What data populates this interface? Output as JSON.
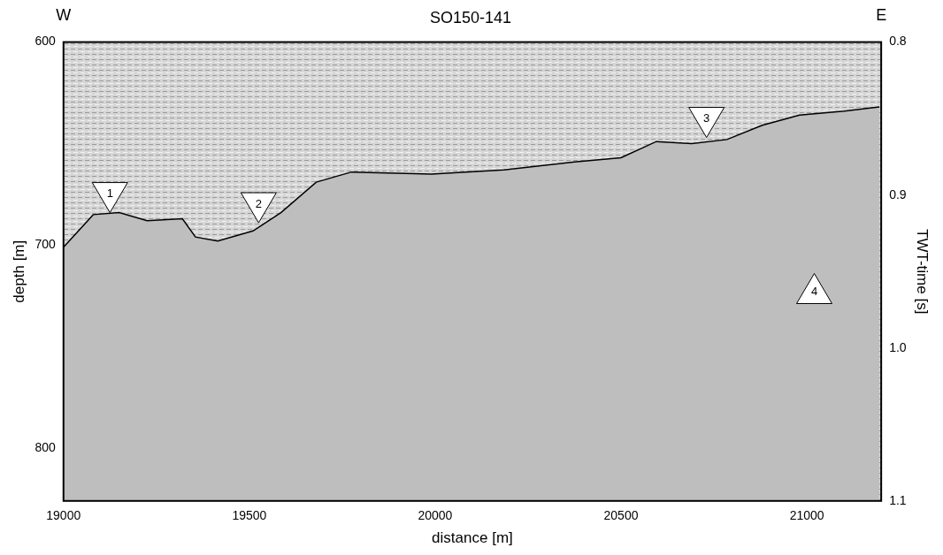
{
  "chart_data": {
    "type": "line",
    "title": "SO150-141",
    "direction_labels": [
      "W",
      "E"
    ],
    "x_label": "distance [m]",
    "y_label": "depth [m]",
    "y2_label": "TWT-time [s]",
    "x": [
      19000,
      19080,
      19150,
      19225,
      19320,
      19355,
      19415,
      19510,
      19585,
      19680,
      19775,
      19990,
      20185,
      20375,
      20500,
      20595,
      20690,
      20785,
      20880,
      20980,
      21100,
      21195
    ],
    "values": [
      701,
      685,
      684,
      688,
      687,
      696,
      698,
      693,
      684,
      669,
      664,
      665,
      663,
      659,
      657,
      649,
      650,
      648,
      641,
      636,
      634,
      632
    ],
    "color": "#000000",
    "xlim": [
      19000,
      21200
    ],
    "xticks": [
      19000,
      19500,
      20000,
      20500,
      21000
    ],
    "ylim": [
      600,
      826
    ],
    "yticks": [
      600,
      700,
      800
    ],
    "y2lim": [
      0.8,
      1.1
    ],
    "y2ticks": [
      {
        "value": 0.8,
        "label": "0.8"
      },
      {
        "value": 0.9,
        "label": "0.9"
      },
      {
        "value": 1.0,
        "label": "1.0"
      },
      {
        "value": 1.1,
        "label": "1.1"
      }
    ],
    "grid": false,
    "annotations": [
      {
        "text": "1",
        "x": 19125,
        "y": 684,
        "marker": "triangle-down"
      },
      {
        "text": "2",
        "x": 19525,
        "y": 689,
        "marker": "triangle-down"
      },
      {
        "text": "3",
        "x": 20730,
        "y": 647,
        "marker": "triangle-down"
      },
      {
        "text": "4",
        "x": 21020,
        "y": 714,
        "marker": "triangle-up"
      }
    ]
  }
}
